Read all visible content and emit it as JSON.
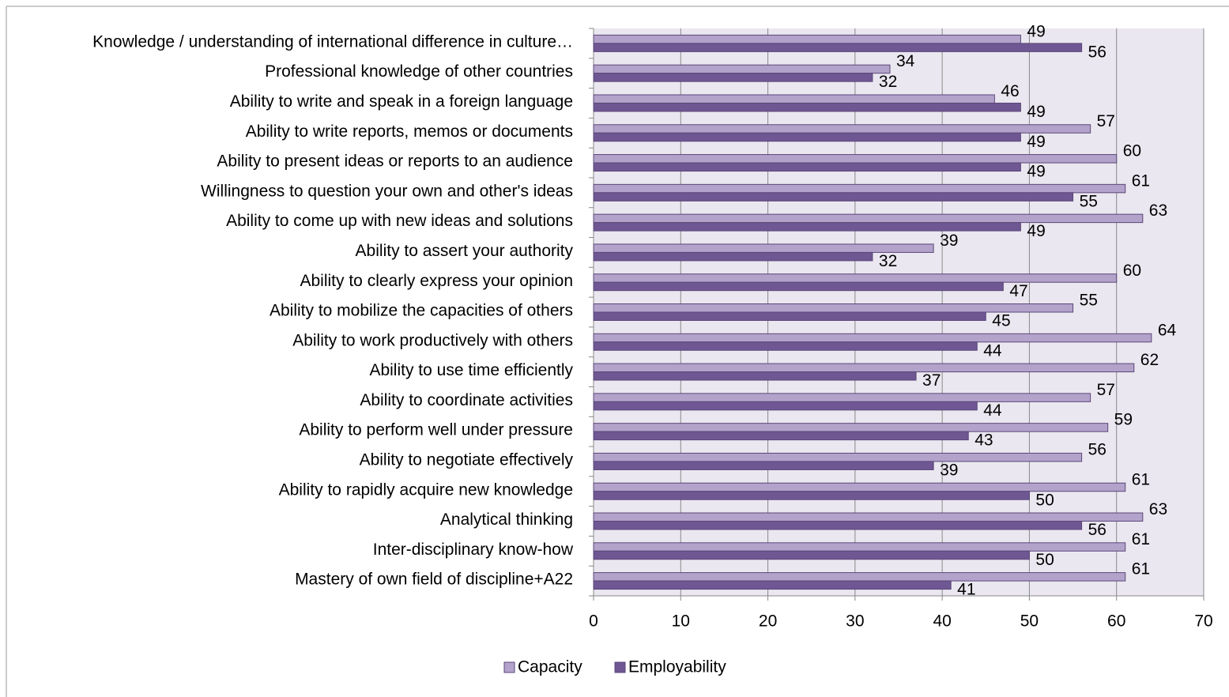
{
  "chart_data": {
    "type": "bar",
    "orientation": "horizontal",
    "categories": [
      "Knowledge / understanding of international difference in culture…",
      "Professional knowledge of other countries",
      "Ability to write and speak in a foreign language",
      "Ability to write reports, memos or documents",
      "Ability to present ideas or reports to an audience",
      "Willingness to question your own and other's ideas",
      "Ability to come up with new ideas and solutions",
      "Ability to assert your authority",
      "Ability to clearly express your opinion",
      "Ability to mobilize the capacities of others",
      "Ability to work productively with others",
      "Ability to use time efficiently",
      "Ability to coordinate activities",
      "Ability to perform well under pressure",
      "Ability to negotiate effectively",
      "Ability to rapidly acquire new knowledge",
      "Analytical thinking",
      "Inter-disciplinary know-how",
      "Mastery of own field of discipline+A22"
    ],
    "series": [
      {
        "name": "Capacity",
        "color": "#b3a3cb",
        "values": [
          49,
          34,
          46,
          57,
          60,
          61,
          63,
          39,
          60,
          55,
          64,
          62,
          57,
          59,
          56,
          61,
          63,
          61,
          61
        ]
      },
      {
        "name": "Employability",
        "color": "#6f5793",
        "values": [
          56,
          32,
          49,
          49,
          49,
          55,
          49,
          32,
          47,
          45,
          44,
          37,
          44,
          43,
          39,
          50,
          56,
          50,
          41
        ]
      }
    ],
    "xlim": [
      0,
      70
    ],
    "xticks": [
      0,
      10,
      20,
      30,
      40,
      50,
      60,
      70
    ],
    "grid": true,
    "legend": "bottom"
  }
}
